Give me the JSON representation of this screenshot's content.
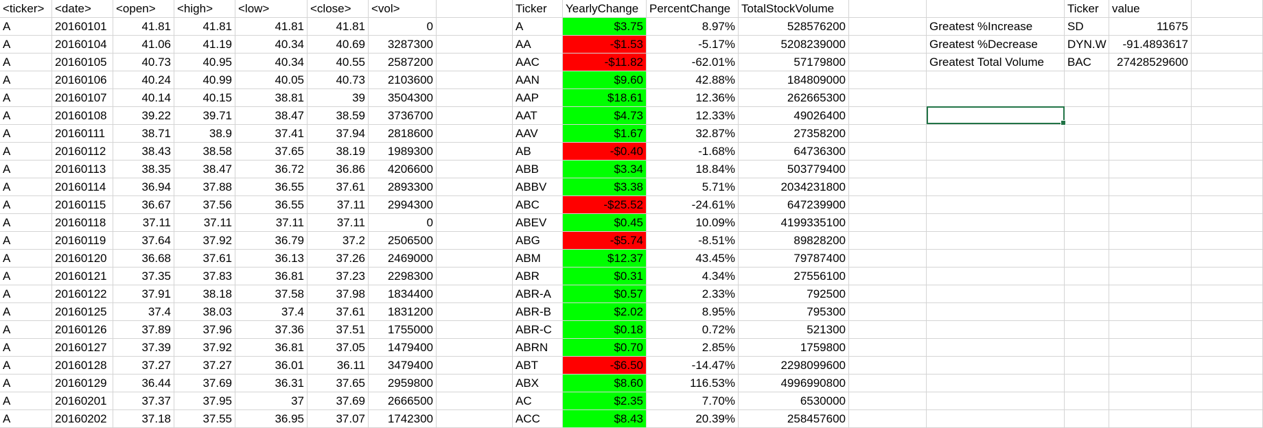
{
  "raw": {
    "headers": [
      "<ticker>",
      "<date>",
      "<open>",
      "<high>",
      "<low>",
      "<close>",
      "<vol>"
    ],
    "rows": [
      [
        "A",
        "20160101",
        "41.81",
        "41.81",
        "41.81",
        "41.81",
        "0"
      ],
      [
        "A",
        "20160104",
        "41.06",
        "41.19",
        "40.34",
        "40.69",
        "3287300"
      ],
      [
        "A",
        "20160105",
        "40.73",
        "40.95",
        "40.34",
        "40.55",
        "2587200"
      ],
      [
        "A",
        "20160106",
        "40.24",
        "40.99",
        "40.05",
        "40.73",
        "2103600"
      ],
      [
        "A",
        "20160107",
        "40.14",
        "40.15",
        "38.81",
        "39",
        "3504300"
      ],
      [
        "A",
        "20160108",
        "39.22",
        "39.71",
        "38.47",
        "38.59",
        "3736700"
      ],
      [
        "A",
        "20160111",
        "38.71",
        "38.9",
        "37.41",
        "37.94",
        "2818600"
      ],
      [
        "A",
        "20160112",
        "38.43",
        "38.58",
        "37.65",
        "38.19",
        "1989300"
      ],
      [
        "A",
        "20160113",
        "38.35",
        "38.47",
        "36.72",
        "36.86",
        "4206600"
      ],
      [
        "A",
        "20160114",
        "36.94",
        "37.88",
        "36.55",
        "37.61",
        "2893300"
      ],
      [
        "A",
        "20160115",
        "36.67",
        "37.56",
        "36.55",
        "37.11",
        "2994300"
      ],
      [
        "A",
        "20160118",
        "37.11",
        "37.11",
        "37.11",
        "37.11",
        "0"
      ],
      [
        "A",
        "20160119",
        "37.64",
        "37.92",
        "36.79",
        "37.2",
        "2506500"
      ],
      [
        "A",
        "20160120",
        "36.68",
        "37.61",
        "36.13",
        "37.26",
        "2469000"
      ],
      [
        "A",
        "20160121",
        "37.35",
        "37.83",
        "36.81",
        "37.23",
        "2298300"
      ],
      [
        "A",
        "20160122",
        "37.91",
        "38.18",
        "37.58",
        "37.98",
        "1834400"
      ],
      [
        "A",
        "20160125",
        "37.4",
        "38.03",
        "37.4",
        "37.61",
        "1831200"
      ],
      [
        "A",
        "20160126",
        "37.89",
        "37.96",
        "37.36",
        "37.51",
        "1755000"
      ],
      [
        "A",
        "20160127",
        "37.39",
        "37.92",
        "36.81",
        "37.05",
        "1479400"
      ],
      [
        "A",
        "20160128",
        "37.27",
        "37.27",
        "36.01",
        "36.11",
        "3479400"
      ],
      [
        "A",
        "20160129",
        "36.44",
        "37.69",
        "36.31",
        "37.65",
        "2959800"
      ],
      [
        "A",
        "20160201",
        "37.37",
        "37.95",
        "37",
        "37.69",
        "2666500"
      ],
      [
        "A",
        "20160202",
        "37.18",
        "37.55",
        "36.95",
        "37.07",
        "1742300"
      ]
    ]
  },
  "summary": {
    "headers": [
      "Ticker",
      "YearlyChange",
      "PercentChange",
      "TotalStockVolume"
    ],
    "rows": [
      [
        "A",
        "$3.75",
        "8.97%",
        "528576200",
        "pos"
      ],
      [
        "AA",
        "-$1.53",
        "-5.17%",
        "5208239000",
        "neg"
      ],
      [
        "AAC",
        "-$11.82",
        "-62.01%",
        "57179800",
        "neg"
      ],
      [
        "AAN",
        "$9.60",
        "42.88%",
        "184809000",
        "pos"
      ],
      [
        "AAP",
        "$18.61",
        "12.36%",
        "262665300",
        "pos"
      ],
      [
        "AAT",
        "$4.73",
        "12.33%",
        "49026400",
        "pos"
      ],
      [
        "AAV",
        "$1.67",
        "32.87%",
        "27358200",
        "pos"
      ],
      [
        "AB",
        "-$0.40",
        "-1.68%",
        "64736300",
        "neg"
      ],
      [
        "ABB",
        "$3.34",
        "18.84%",
        "503779400",
        "pos"
      ],
      [
        "ABBV",
        "$3.38",
        "5.71%",
        "2034231800",
        "pos"
      ],
      [
        "ABC",
        "-$25.52",
        "-24.61%",
        "647239900",
        "neg"
      ],
      [
        "ABEV",
        "$0.45",
        "10.09%",
        "4199335100",
        "pos"
      ],
      [
        "ABG",
        "-$5.74",
        "-8.51%",
        "89828200",
        "neg"
      ],
      [
        "ABM",
        "$12.37",
        "43.45%",
        "79787400",
        "pos"
      ],
      [
        "ABR",
        "$0.31",
        "4.34%",
        "27556100",
        "pos"
      ],
      [
        "ABR-A",
        "$0.57",
        "2.33%",
        "792500",
        "pos"
      ],
      [
        "ABR-B",
        "$2.02",
        "8.95%",
        "795300",
        "pos"
      ],
      [
        "ABR-C",
        "$0.18",
        "0.72%",
        "521300",
        "pos"
      ],
      [
        "ABRN",
        "$0.70",
        "2.85%",
        "1759800",
        "pos"
      ],
      [
        "ABT",
        "-$6.50",
        "-14.47%",
        "2298099600",
        "neg"
      ],
      [
        "ABX",
        "$8.60",
        "116.53%",
        "4996990800",
        "pos"
      ],
      [
        "AC",
        "$2.35",
        "7.70%",
        "6530000",
        "pos"
      ],
      [
        "ACC",
        "$8.43",
        "20.39%",
        "258457600",
        "pos"
      ]
    ]
  },
  "greatest": {
    "headers": [
      "Ticker",
      "value"
    ],
    "rows": [
      [
        "Greatest %Increase",
        "SD",
        "11675"
      ],
      [
        "Greatest %Decrease",
        "DYN.W",
        "-91.4893617"
      ],
      [
        "Greatest Total Volume",
        "BAC",
        "27428529600"
      ]
    ]
  },
  "colors": {
    "positive": "#00ff00",
    "negative": "#ff0000",
    "grid": "#d4d4d4",
    "selection": "#217346"
  }
}
